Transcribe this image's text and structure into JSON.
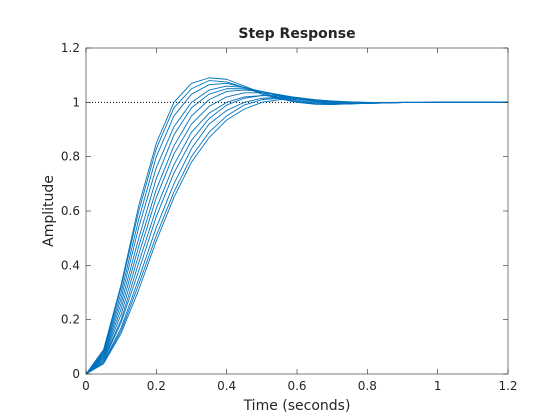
{
  "chart_data": {
    "type": "line",
    "title": "Step Response",
    "xlabel": "Time (seconds)",
    "ylabel": "Amplitude",
    "xlim": [
      0,
      1.2
    ],
    "ylim": [
      0,
      1.2
    ],
    "xticks": [
      0,
      0.2,
      0.4,
      0.6,
      0.8,
      1,
      1.2
    ],
    "xtick_labels": [
      "0",
      "0.2",
      "0.4",
      "0.6",
      "0.8",
      "1",
      "1.2"
    ],
    "yticks": [
      0,
      0.2,
      0.4,
      0.6,
      0.8,
      1,
      1.2
    ],
    "ytick_labels": [
      "0",
      "0.2",
      "0.4",
      "0.6",
      "0.8",
      "1",
      "1.2"
    ],
    "grid": false,
    "reference_line": {
      "y": 1,
      "style": "dotted",
      "color": "#000000"
    },
    "line_color": "#0072BD",
    "series": [
      {
        "x": [
          0,
          0.05,
          0.1,
          0.15,
          0.2,
          0.25,
          0.3,
          0.35,
          0.4,
          0.45,
          0.5,
          0.55,
          0.6,
          0.65,
          0.7,
          0.75,
          0.8,
          0.9,
          1.0,
          1.1,
          1.2
        ],
        "y": [
          0,
          0.09,
          0.33,
          0.62,
          0.85,
          1.0,
          1.07,
          1.09,
          1.085,
          1.06,
          1.035,
          1.015,
          1.0,
          0.993,
          0.992,
          0.995,
          0.998,
          1.0,
          1.0,
          1.0,
          1.0
        ]
      },
      {
        "x": [
          0,
          0.05,
          0.1,
          0.15,
          0.2,
          0.25,
          0.3,
          0.35,
          0.4,
          0.45,
          0.5,
          0.55,
          0.6,
          0.65,
          0.7,
          0.75,
          0.8,
          0.9,
          1.0,
          1.1,
          1.2
        ],
        "y": [
          0,
          0.085,
          0.32,
          0.6,
          0.83,
          0.98,
          1.05,
          1.08,
          1.075,
          1.055,
          1.03,
          1.013,
          1.0,
          0.994,
          0.993,
          0.996,
          0.998,
          1.0,
          1.0,
          1.0,
          1.0
        ]
      },
      {
        "x": [
          0,
          0.05,
          0.1,
          0.15,
          0.2,
          0.25,
          0.3,
          0.35,
          0.4,
          0.45,
          0.5,
          0.55,
          0.6,
          0.65,
          0.7,
          0.75,
          0.8,
          0.9,
          1.0,
          1.1,
          1.2
        ],
        "y": [
          0,
          0.08,
          0.3,
          0.57,
          0.8,
          0.95,
          1.03,
          1.065,
          1.07,
          1.055,
          1.035,
          1.017,
          1.004,
          0.996,
          0.993,
          0.994,
          0.997,
          1.0,
          1.0,
          1.0,
          1.0
        ]
      },
      {
        "x": [
          0,
          0.05,
          0.1,
          0.15,
          0.2,
          0.25,
          0.3,
          0.35,
          0.4,
          0.45,
          0.5,
          0.55,
          0.6,
          0.65,
          0.7,
          0.75,
          0.8,
          0.9,
          1.0,
          1.1,
          1.2
        ],
        "y": [
          0,
          0.075,
          0.28,
          0.54,
          0.76,
          0.91,
          1.0,
          1.045,
          1.06,
          1.055,
          1.04,
          1.022,
          1.008,
          0.999,
          0.995,
          0.994,
          0.996,
          0.999,
          1.0,
          1.0,
          1.0
        ]
      },
      {
        "x": [
          0,
          0.05,
          0.1,
          0.15,
          0.2,
          0.25,
          0.3,
          0.35,
          0.4,
          0.45,
          0.5,
          0.55,
          0.6,
          0.65,
          0.7,
          0.75,
          0.8,
          0.9,
          1.0,
          1.1,
          1.2
        ],
        "y": [
          0,
          0.07,
          0.26,
          0.5,
          0.72,
          0.88,
          0.98,
          1.03,
          1.05,
          1.05,
          1.04,
          1.026,
          1.012,
          1.003,
          0.997,
          0.995,
          0.996,
          0.999,
          1.0,
          1.0,
          1.0
        ]
      },
      {
        "x": [
          0,
          0.05,
          0.1,
          0.15,
          0.2,
          0.25,
          0.3,
          0.35,
          0.4,
          0.45,
          0.5,
          0.55,
          0.6,
          0.65,
          0.7,
          0.75,
          0.8,
          0.9,
          1.0,
          1.1,
          1.2
        ],
        "y": [
          0,
          0.065,
          0.24,
          0.47,
          0.68,
          0.84,
          0.95,
          1.01,
          1.04,
          1.045,
          1.04,
          1.028,
          1.015,
          1.005,
          0.999,
          0.996,
          0.996,
          0.999,
          1.0,
          1.0,
          1.0
        ]
      },
      {
        "x": [
          0,
          0.05,
          0.1,
          0.15,
          0.2,
          0.25,
          0.3,
          0.35,
          0.4,
          0.45,
          0.5,
          0.55,
          0.6,
          0.65,
          0.7,
          0.75,
          0.8,
          0.9,
          1.0,
          1.1,
          1.2
        ],
        "y": [
          0,
          0.06,
          0.22,
          0.44,
          0.65,
          0.81,
          0.92,
          0.985,
          1.02,
          1.035,
          1.035,
          1.028,
          1.017,
          1.008,
          1.002,
          0.998,
          0.997,
          0.999,
          1.0,
          1.0,
          1.0
        ]
      },
      {
        "x": [
          0,
          0.05,
          0.1,
          0.15,
          0.2,
          0.25,
          0.3,
          0.35,
          0.4,
          0.45,
          0.5,
          0.55,
          0.6,
          0.65,
          0.7,
          0.75,
          0.8,
          0.9,
          1.0,
          1.1,
          1.2
        ],
        "y": [
          0,
          0.055,
          0.2,
          0.41,
          0.61,
          0.77,
          0.89,
          0.96,
          1.0,
          1.02,
          1.025,
          1.022,
          1.015,
          1.008,
          1.003,
          0.999,
          0.998,
          0.999,
          1.0,
          1.0,
          1.0
        ]
      },
      {
        "x": [
          0,
          0.05,
          0.1,
          0.15,
          0.2,
          0.25,
          0.3,
          0.35,
          0.4,
          0.45,
          0.5,
          0.55,
          0.6,
          0.65,
          0.7,
          0.75,
          0.8,
          0.9,
          1.0,
          1.1,
          1.2
        ],
        "y": [
          0,
          0.05,
          0.19,
          0.38,
          0.58,
          0.74,
          0.86,
          0.94,
          0.99,
          1.015,
          1.025,
          1.025,
          1.018,
          1.01,
          1.004,
          1.0,
          0.998,
          0.999,
          1.0,
          1.0,
          1.0
        ]
      },
      {
        "x": [
          0,
          0.05,
          0.1,
          0.15,
          0.2,
          0.25,
          0.3,
          0.35,
          0.4,
          0.45,
          0.5,
          0.55,
          0.6,
          0.65,
          0.7,
          0.75,
          0.8,
          0.9,
          1.0,
          1.1,
          1.2
        ],
        "y": [
          0,
          0.045,
          0.17,
          0.35,
          0.54,
          0.7,
          0.83,
          0.92,
          0.97,
          1.0,
          1.015,
          1.018,
          1.015,
          1.009,
          1.004,
          1.001,
          0.999,
          0.999,
          1.0,
          1.0,
          1.0
        ]
      },
      {
        "x": [
          0,
          0.05,
          0.1,
          0.15,
          0.2,
          0.25,
          0.3,
          0.35,
          0.4,
          0.45,
          0.5,
          0.55,
          0.6,
          0.65,
          0.7,
          0.75,
          0.8,
          0.9,
          1.0,
          1.1,
          1.2
        ],
        "y": [
          0,
          0.04,
          0.16,
          0.33,
          0.51,
          0.67,
          0.8,
          0.89,
          0.95,
          0.99,
          1.01,
          1.015,
          1.013,
          1.008,
          1.004,
          1.001,
          0.999,
          0.999,
          1.0,
          1.0,
          1.0
        ]
      },
      {
        "x": [
          0,
          0.05,
          0.1,
          0.15,
          0.2,
          0.25,
          0.3,
          0.35,
          0.4,
          0.45,
          0.5,
          0.55,
          0.6,
          0.65,
          0.7,
          0.75,
          0.8,
          0.9,
          1.0,
          1.1,
          1.2
        ],
        "y": [
          0,
          0.038,
          0.15,
          0.31,
          0.49,
          0.65,
          0.78,
          0.87,
          0.935,
          0.975,
          1.0,
          1.01,
          1.012,
          1.009,
          1.005,
          1.002,
          1.0,
          0.999,
          1.0,
          1.0,
          1.0
        ]
      }
    ]
  }
}
